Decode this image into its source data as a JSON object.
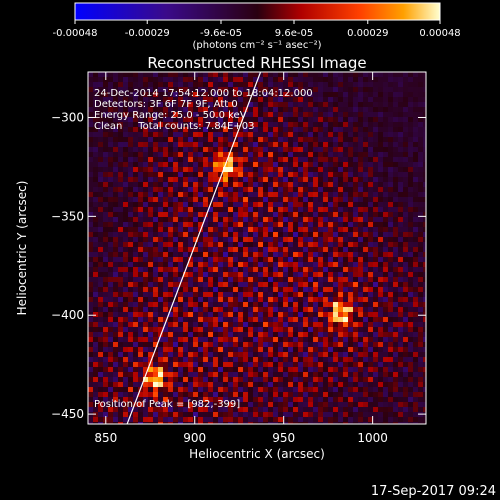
{
  "chart_data": {
    "type": "heatmap",
    "title": "Reconstructed RHESSI Image",
    "xlabel": "Heliocentric X (arcsec)",
    "ylabel": "Heliocentric Y (arcsec)",
    "xlim": [
      840,
      1030
    ],
    "ylim": [
      -455,
      -277
    ],
    "x_ticks": [
      850,
      900,
      950,
      1000
    ],
    "y_ticks": [
      -300,
      -350,
      -400,
      -450
    ],
    "colorbar": {
      "range": [
        -0.00048,
        0.00048
      ],
      "tick_values": [
        -0.00048,
        -0.00029,
        -9.6e-05,
        9.6e-05,
        0.00029,
        0.00048
      ],
      "tick_labels": [
        "-0.00048",
        "-0.00029",
        "-9.6e-05",
        "9.6e-05",
        "0.00029",
        "0.00048"
      ],
      "unit_label": "(photons cm⁻² s⁻¹ asec⁻²)"
    },
    "info_lines": [
      "24-Dec-2014 17:54:12.000 to 18:04:12.000",
      "Detectors: 3F 6F 7F 9F, Att 0",
      "Energy Range: 25.0 - 50.0 keV",
      "Clean     Total counts: 7.84E+03"
    ],
    "peak_label": "Position of Peak = [982,-399]",
    "peak": [
      982,
      -399
    ],
    "sources": [
      {
        "x": 918,
        "y": -325,
        "intensity": 0.00046
      },
      {
        "x": 982,
        "y": -399,
        "intensity": 0.00048
      },
      {
        "x": 878,
        "y": -432,
        "intensity": 0.00044
      }
    ],
    "limb_line": [
      [
        862,
        -455
      ],
      [
        937,
        -277
      ]
    ],
    "timestamp": "17-Sep-2017 09:24"
  }
}
